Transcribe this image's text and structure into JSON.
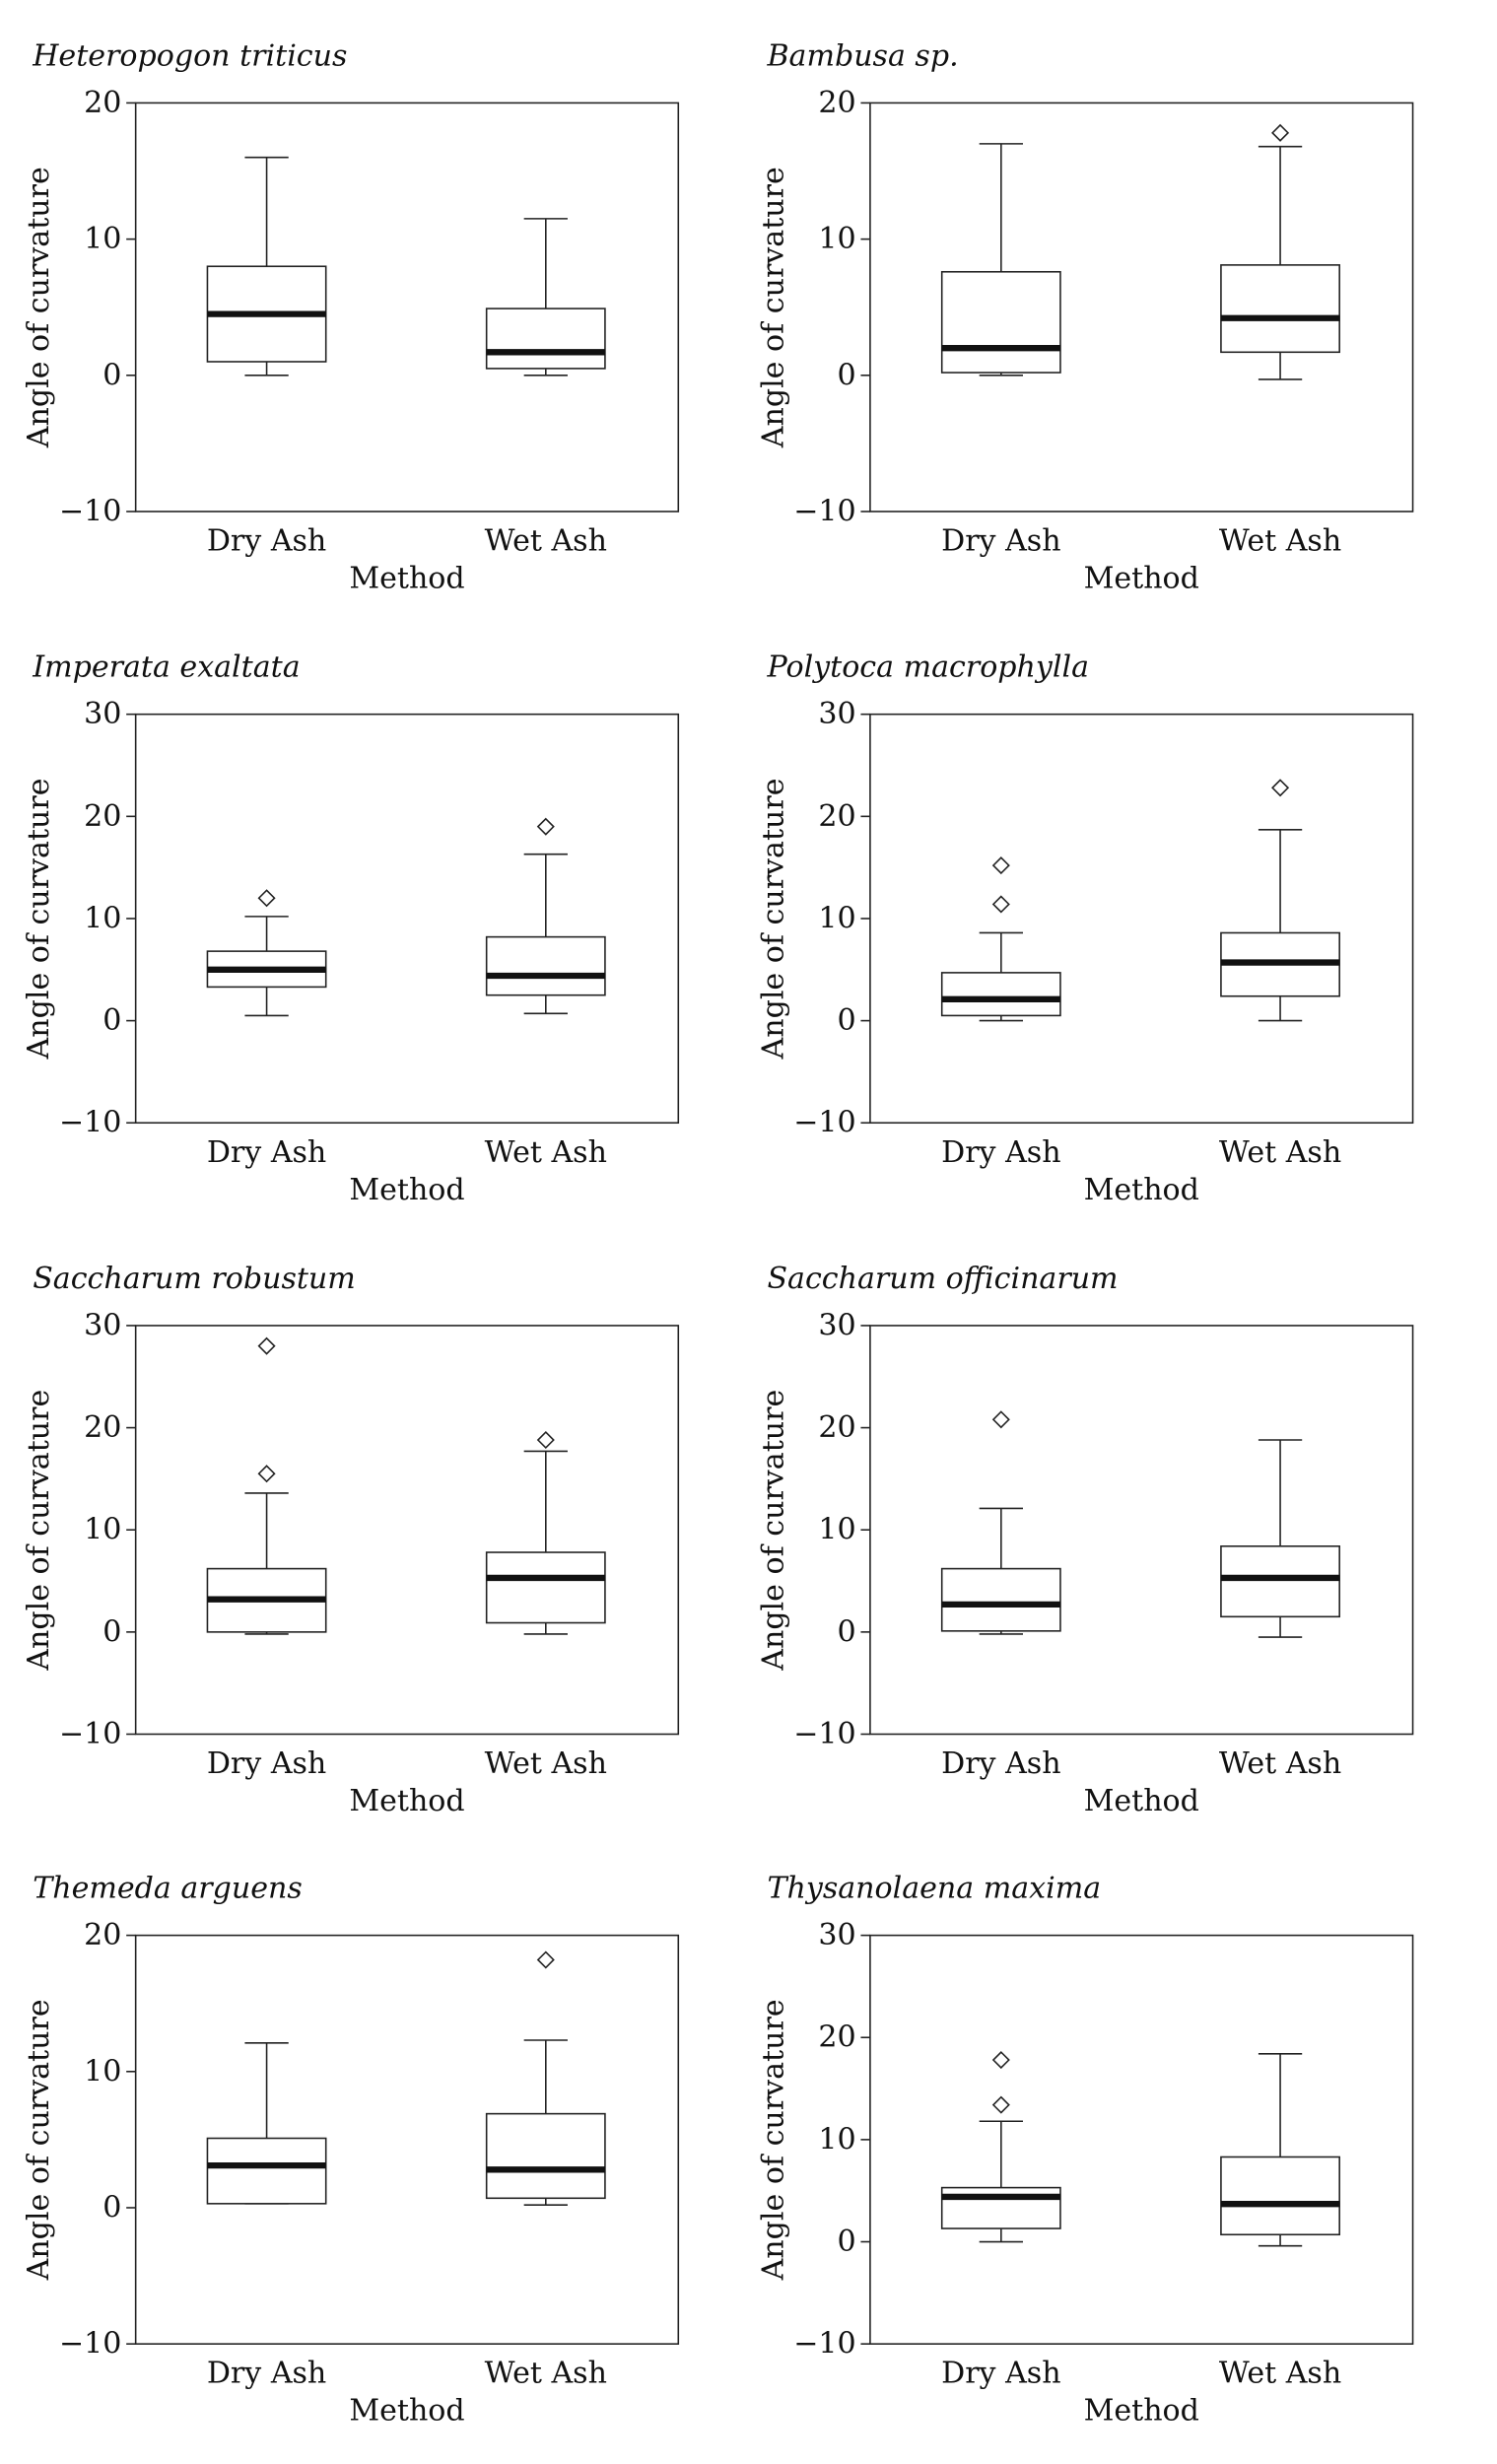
{
  "chart_data": [
    {
      "type": "box",
      "title": "Heteropogon triticus",
      "xlabel": "Method",
      "ylabel": "Angle of curvature",
      "ylim": [
        -10,
        20
      ],
      "yticks": [
        -10,
        0,
        10,
        20
      ],
      "categories": [
        "Dry Ash",
        "Wet Ash"
      ],
      "boxes": [
        {
          "min": 0,
          "q1": 1,
          "median": 4.5,
          "q3": 8,
          "max": 16,
          "outliers": []
        },
        {
          "min": 0,
          "q1": 0.5,
          "median": 1.7,
          "q3": 4.9,
          "max": 11.5,
          "outliers": []
        }
      ]
    },
    {
      "type": "box",
      "title": "Bambusa sp.",
      "xlabel": "Method",
      "ylabel": "Angle of curvature",
      "ylim": [
        -10,
        20
      ],
      "yticks": [
        -10,
        0,
        10,
        20
      ],
      "categories": [
        "Dry Ash",
        "Wet Ash"
      ],
      "boxes": [
        {
          "min": 0,
          "q1": 0.2,
          "median": 2,
          "q3": 7.6,
          "max": 17,
          "outliers": []
        },
        {
          "min": -0.3,
          "q1": 1.7,
          "median": 4.2,
          "q3": 8.1,
          "max": 16.8,
          "outliers": [
            17.8
          ]
        }
      ]
    },
    {
      "type": "box",
      "title": "Imperata exaltata",
      "xlabel": "Method",
      "ylabel": "Angle of curvature",
      "ylim": [
        -10,
        30
      ],
      "yticks": [
        -10,
        0,
        10,
        20,
        30
      ],
      "categories": [
        "Dry Ash",
        "Wet Ash"
      ],
      "boxes": [
        {
          "min": 0.5,
          "q1": 3.3,
          "median": 5,
          "q3": 6.8,
          "max": 10.2,
          "outliers": [
            12
          ]
        },
        {
          "min": 0.7,
          "q1": 2.5,
          "median": 4.4,
          "q3": 8.2,
          "max": 16.3,
          "outliers": [
            19
          ]
        }
      ]
    },
    {
      "type": "box",
      "title": "Polytoca macrophylla",
      "xlabel": "Method",
      "ylabel": "Angle of curvature",
      "ylim": [
        -10,
        30
      ],
      "yticks": [
        -10,
        0,
        10,
        20,
        30
      ],
      "categories": [
        "Dry Ash",
        "Wet Ash"
      ],
      "boxes": [
        {
          "min": 0,
          "q1": 0.5,
          "median": 2.1,
          "q3": 4.7,
          "max": 8.6,
          "outliers": [
            11.4,
            15.2
          ]
        },
        {
          "min": 0,
          "q1": 2.4,
          "median": 5.7,
          "q3": 8.6,
          "max": 18.7,
          "outliers": [
            22.8
          ]
        }
      ]
    },
    {
      "type": "box",
      "title": "Saccharum robustum",
      "xlabel": "Method",
      "ylabel": "Angle of curvature",
      "ylim": [
        -10,
        30
      ],
      "yticks": [
        -10,
        0,
        10,
        20,
        30
      ],
      "categories": [
        "Dry Ash",
        "Wet Ash"
      ],
      "boxes": [
        {
          "min": -0.2,
          "q1": 0,
          "median": 3.2,
          "q3": 6.2,
          "max": 13.6,
          "outliers": [
            15.5,
            28
          ]
        },
        {
          "min": -0.2,
          "q1": 0.9,
          "median": 5.3,
          "q3": 7.8,
          "max": 17.7,
          "outliers": [
            18.8
          ]
        }
      ]
    },
    {
      "type": "box",
      "title": "Saccharum officinarum",
      "xlabel": "Method",
      "ylabel": "Angle of curvature",
      "ylim": [
        -10,
        30
      ],
      "yticks": [
        -10,
        0,
        10,
        20,
        30
      ],
      "categories": [
        "Dry Ash",
        "Wet Ash"
      ],
      "boxes": [
        {
          "min": -0.2,
          "q1": 0.1,
          "median": 2.7,
          "q3": 6.2,
          "max": 12.1,
          "outliers": [
            20.8
          ]
        },
        {
          "min": -0.5,
          "q1": 1.5,
          "median": 5.3,
          "q3": 8.4,
          "max": 18.8,
          "outliers": []
        }
      ]
    },
    {
      "type": "box",
      "title": "Themeda arguens",
      "xlabel": "Method",
      "ylabel": "Angle of curvature",
      "ylim": [
        -10,
        20
      ],
      "yticks": [
        -10,
        0,
        10,
        20
      ],
      "categories": [
        "Dry Ash",
        "Wet Ash"
      ],
      "boxes": [
        {
          "min": 0.3,
          "q1": 0.3,
          "median": 3.1,
          "q3": 5.1,
          "max": 12.1,
          "outliers": []
        },
        {
          "min": 0.2,
          "q1": 0.7,
          "median": 2.8,
          "q3": 6.9,
          "max": 12.3,
          "outliers": [
            18.2
          ]
        }
      ]
    },
    {
      "type": "box",
      "title": "Thysanolaena maxima",
      "xlabel": "Method",
      "ylabel": "Angle of curvature",
      "ylim": [
        -10,
        30
      ],
      "yticks": [
        -10,
        0,
        10,
        20,
        30
      ],
      "categories": [
        "Dry Ash",
        "Wet Ash"
      ],
      "boxes": [
        {
          "min": 0,
          "q1": 1.3,
          "median": 4.4,
          "q3": 5.3,
          "max": 11.8,
          "outliers": [
            13.4,
            17.8
          ]
        },
        {
          "min": -0.4,
          "q1": 0.7,
          "median": 3.7,
          "q3": 8.3,
          "max": 18.4,
          "outliers": []
        }
      ]
    }
  ]
}
